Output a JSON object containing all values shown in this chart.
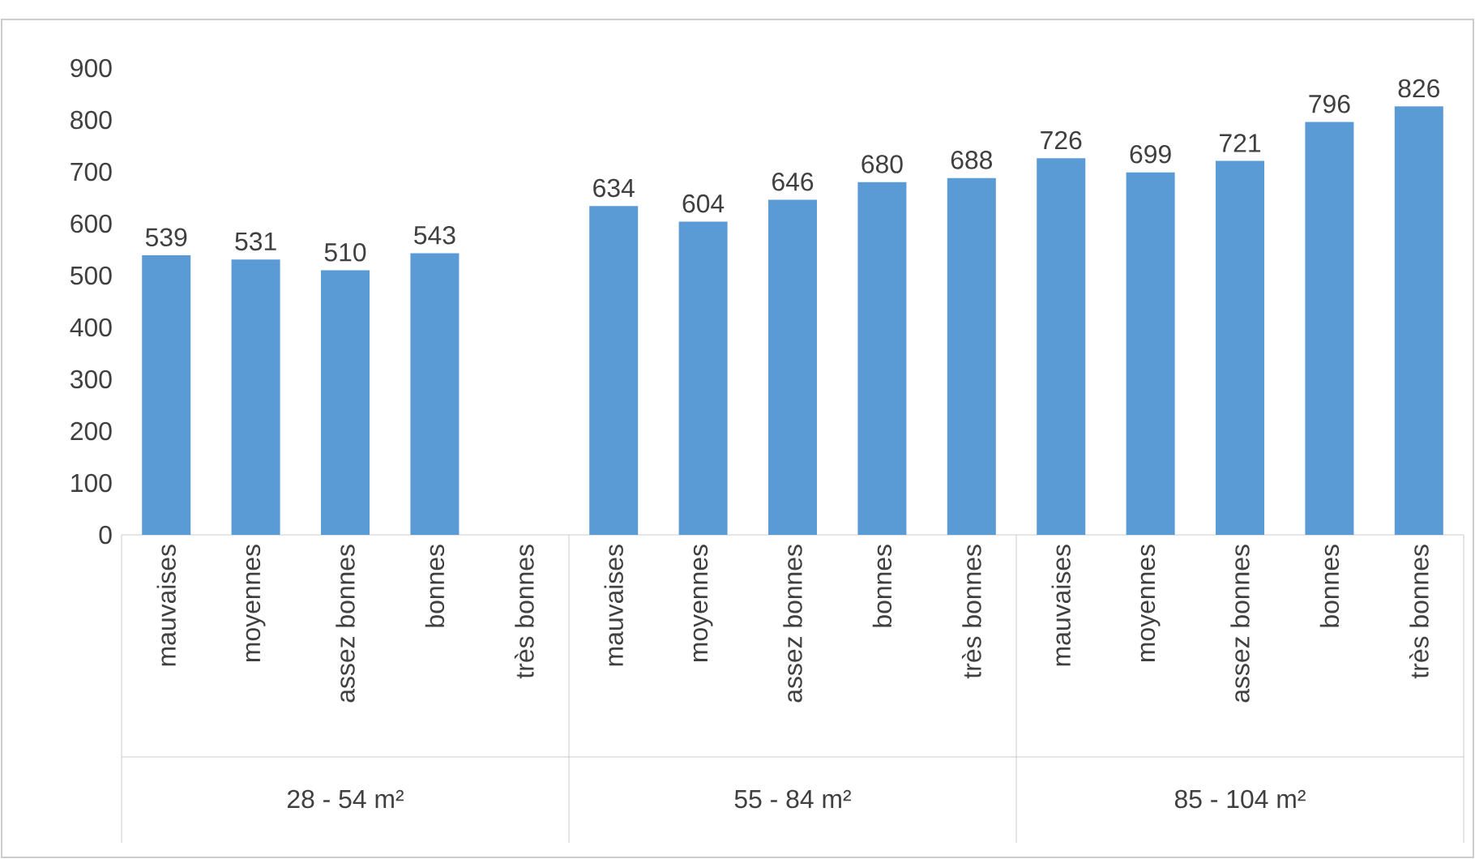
{
  "chart_data": {
    "type": "bar",
    "categories": [
      "mauvaises",
      "moyennes",
      "assez bonnes",
      "bonnes",
      "très bonnes",
      "mauvaises",
      "moyennes",
      "assez bonnes",
      "bonnes",
      "très bonnes",
      "mauvaises",
      "moyennes",
      "assez bonnes",
      "bonnes",
      "très bonnes"
    ],
    "values": [
      539,
      531,
      510,
      543,
      null,
      634,
      604,
      646,
      680,
      688,
      726,
      699,
      721,
      796,
      826
    ],
    "color": "#5b9bd5",
    "ylim": [
      0,
      900
    ],
    "yticks": [
      0,
      100,
      200,
      300,
      400,
      500,
      600,
      700,
      800,
      900
    ],
    "data_labels": true,
    "annotations": [
      "28 - 54 m²",
      "55 - 84 m²",
      "85 - 104 m²"
    ]
  }
}
